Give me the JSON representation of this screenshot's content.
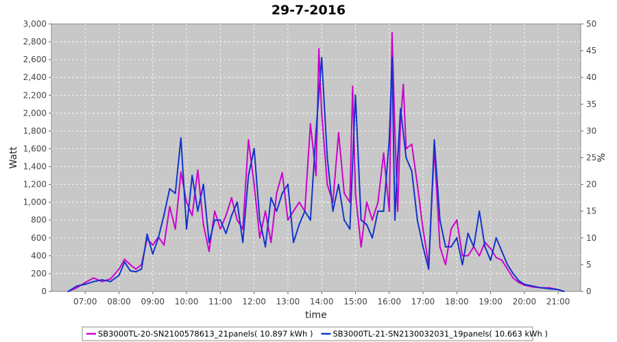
{
  "chart_data": {
    "type": "line",
    "title": "29-7-2016",
    "xlabel": "time",
    "ylabel": "Watt",
    "y2label": "%",
    "x_range": [
      "06:00",
      "21:40"
    ],
    "ylim": [
      0,
      3000
    ],
    "y2lim": [
      0,
      50
    ],
    "y_ticks": [
      "0",
      "200",
      "400",
      "600",
      "800",
      "1,000",
      "1,200",
      "1,400",
      "1,600",
      "1,800",
      "2,000",
      "2,200",
      "2,400",
      "2,600",
      "2,800",
      "3,000"
    ],
    "y2_ticks": [
      "0",
      "5",
      "10",
      "15",
      "20",
      "25",
      "30",
      "35",
      "40",
      "45",
      "50"
    ],
    "x_ticks": [
      "07:00",
      "08:00",
      "09:00",
      "10:00",
      "11:00",
      "12:00",
      "13:00",
      "14:00",
      "15:00",
      "16:00",
      "17:00",
      "18:00",
      "19:00",
      "20:00",
      "21:00"
    ],
    "grid": true,
    "legend_position": "bottom",
    "series": [
      {
        "name": "SB3000TL-20-SN2100578613_21panels( 10.897 kWh )",
        "color": "#cc00cc",
        "points": [
          [
            "06:30",
            0
          ],
          [
            "06:45",
            40
          ],
          [
            "07:00",
            100
          ],
          [
            "07:15",
            150
          ],
          [
            "07:30",
            110
          ],
          [
            "07:45",
            140
          ],
          [
            "08:00",
            250
          ],
          [
            "08:10",
            360
          ],
          [
            "08:20",
            300
          ],
          [
            "08:30",
            250
          ],
          [
            "08:40",
            300
          ],
          [
            "08:50",
            590
          ],
          [
            "09:00",
            520
          ],
          [
            "09:10",
            610
          ],
          [
            "09:20",
            520
          ],
          [
            "09:30",
            950
          ],
          [
            "09:40",
            700
          ],
          [
            "09:50",
            1340
          ],
          [
            "10:00",
            1000
          ],
          [
            "10:10",
            850
          ],
          [
            "10:20",
            1360
          ],
          [
            "10:30",
            750
          ],
          [
            "10:40",
            450
          ],
          [
            "10:50",
            900
          ],
          [
            "11:00",
            700
          ],
          [
            "11:10",
            850
          ],
          [
            "11:20",
            1050
          ],
          [
            "11:30",
            800
          ],
          [
            "11:40",
            700
          ],
          [
            "11:50",
            1700
          ],
          [
            "12:00",
            1200
          ],
          [
            "12:10",
            600
          ],
          [
            "12:20",
            900
          ],
          [
            "12:30",
            550
          ],
          [
            "12:40",
            1100
          ],
          [
            "12:50",
            1330
          ],
          [
            "13:00",
            800
          ],
          [
            "13:10",
            900
          ],
          [
            "13:20",
            1000
          ],
          [
            "13:30",
            900
          ],
          [
            "13:40",
            1880
          ],
          [
            "13:50",
            1300
          ],
          [
            "13:55",
            2720
          ],
          [
            "14:00",
            2000
          ],
          [
            "14:10",
            1200
          ],
          [
            "14:20",
            1000
          ],
          [
            "14:30",
            1780
          ],
          [
            "14:40",
            1100
          ],
          [
            "14:50",
            1000
          ],
          [
            "14:55",
            2300
          ],
          [
            "15:00",
            1100
          ],
          [
            "15:10",
            500
          ],
          [
            "15:20",
            1000
          ],
          [
            "15:30",
            800
          ],
          [
            "15:40",
            1000
          ],
          [
            "15:50",
            1550
          ],
          [
            "16:00",
            900
          ],
          [
            "16:05",
            2900
          ],
          [
            "16:10",
            1800
          ],
          [
            "16:15",
            900
          ],
          [
            "16:20",
            1900
          ],
          [
            "16:25",
            2320
          ],
          [
            "16:30",
            1600
          ],
          [
            "16:40",
            1650
          ],
          [
            "16:50",
            1200
          ],
          [
            "17:00",
            700
          ],
          [
            "17:10",
            300
          ],
          [
            "17:20",
            1600
          ],
          [
            "17:30",
            500
          ],
          [
            "17:40",
            300
          ],
          [
            "17:50",
            700
          ],
          [
            "18:00",
            800
          ],
          [
            "18:10",
            400
          ],
          [
            "18:20",
            400
          ],
          [
            "18:30",
            500
          ],
          [
            "18:40",
            400
          ],
          [
            "18:50",
            550
          ],
          [
            "19:00",
            480
          ],
          [
            "19:10",
            380
          ],
          [
            "19:20",
            350
          ],
          [
            "19:30",
            250
          ],
          [
            "19:40",
            150
          ],
          [
            "19:50",
            100
          ],
          [
            "20:00",
            70
          ],
          [
            "20:15",
            50
          ],
          [
            "20:30",
            40
          ],
          [
            "20:45",
            40
          ],
          [
            "21:00",
            20
          ],
          [
            "21:10",
            0
          ]
        ]
      },
      {
        "name": "SB3000TL-21-SN2130032031_19panels( 10.663 kWh )",
        "color": "#1133cc",
        "points": [
          [
            "06:30",
            0
          ],
          [
            "06:45",
            60
          ],
          [
            "07:00",
            80
          ],
          [
            "07:15",
            110
          ],
          [
            "07:30",
            130
          ],
          [
            "07:45",
            110
          ],
          [
            "08:00",
            180
          ],
          [
            "08:10",
            330
          ],
          [
            "08:20",
            230
          ],
          [
            "08:30",
            220
          ],
          [
            "08:40",
            250
          ],
          [
            "08:50",
            640
          ],
          [
            "09:00",
            420
          ],
          [
            "09:10",
            600
          ],
          [
            "09:20",
            860
          ],
          [
            "09:30",
            1150
          ],
          [
            "09:40",
            1100
          ],
          [
            "09:50",
            1720
          ],
          [
            "10:00",
            700
          ],
          [
            "10:10",
            1300
          ],
          [
            "10:20",
            900
          ],
          [
            "10:30",
            1200
          ],
          [
            "10:40",
            550
          ],
          [
            "10:50",
            800
          ],
          [
            "11:00",
            800
          ],
          [
            "11:10",
            650
          ],
          [
            "11:20",
            850
          ],
          [
            "11:30",
            1000
          ],
          [
            "11:40",
            550
          ],
          [
            "11:50",
            1300
          ],
          [
            "12:00",
            1600
          ],
          [
            "12:10",
            800
          ],
          [
            "12:20",
            500
          ],
          [
            "12:30",
            1050
          ],
          [
            "12:40",
            900
          ],
          [
            "12:50",
            1100
          ],
          [
            "13:00",
            1200
          ],
          [
            "13:10",
            550
          ],
          [
            "13:20",
            750
          ],
          [
            "13:30",
            900
          ],
          [
            "13:40",
            800
          ],
          [
            "13:50",
            1800
          ],
          [
            "14:00",
            2620
          ],
          [
            "14:10",
            1500
          ],
          [
            "14:20",
            900
          ],
          [
            "14:30",
            1200
          ],
          [
            "14:40",
            800
          ],
          [
            "14:50",
            700
          ],
          [
            "15:00",
            2200
          ],
          [
            "15:10",
            800
          ],
          [
            "15:20",
            750
          ],
          [
            "15:30",
            600
          ],
          [
            "15:40",
            900
          ],
          [
            "15:50",
            900
          ],
          [
            "16:00",
            1700
          ],
          [
            "16:05",
            2620
          ],
          [
            "16:10",
            800
          ],
          [
            "16:15",
            1500
          ],
          [
            "16:20",
            2050
          ],
          [
            "16:30",
            1500
          ],
          [
            "16:40",
            1350
          ],
          [
            "16:50",
            800
          ],
          [
            "17:00",
            500
          ],
          [
            "17:10",
            250
          ],
          [
            "17:20",
            1700
          ],
          [
            "17:30",
            800
          ],
          [
            "17:40",
            500
          ],
          [
            "17:50",
            500
          ],
          [
            "18:00",
            600
          ],
          [
            "18:10",
            300
          ],
          [
            "18:20",
            650
          ],
          [
            "18:30",
            500
          ],
          [
            "18:40",
            900
          ],
          [
            "18:50",
            500
          ],
          [
            "19:00",
            350
          ],
          [
            "19:10",
            600
          ],
          [
            "19:20",
            450
          ],
          [
            "19:30",
            300
          ],
          [
            "19:40",
            200
          ],
          [
            "19:50",
            120
          ],
          [
            "20:00",
            80
          ],
          [
            "20:15",
            60
          ],
          [
            "20:30",
            40
          ],
          [
            "20:45",
            30
          ],
          [
            "21:00",
            20
          ],
          [
            "21:10",
            0
          ]
        ]
      }
    ]
  }
}
